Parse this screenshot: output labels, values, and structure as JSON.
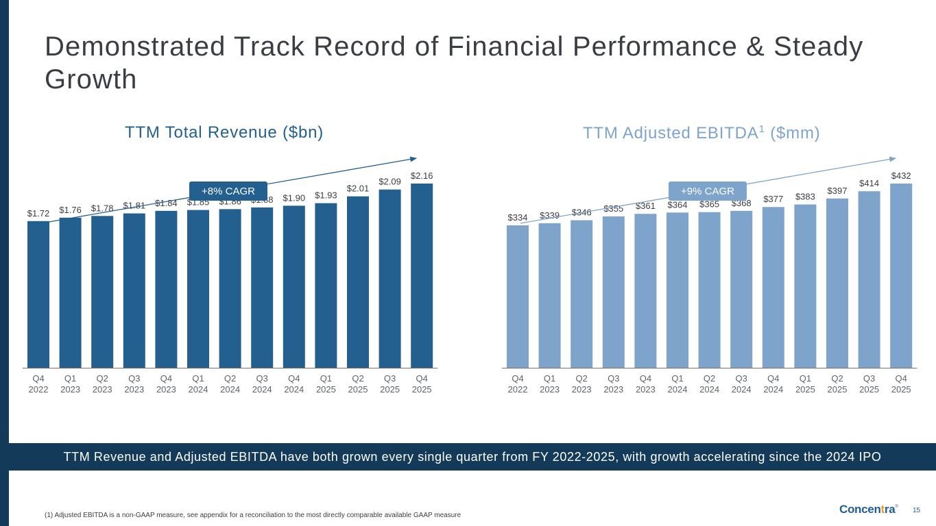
{
  "page": {
    "title": "Demonstrated Track Record of Financial Performance & Steady Growth",
    "banner": "TTM Revenue and Adjusted EBITDA have both grown every single quarter from FY 2022-2025, with growth accelerating since the 2024 IPO",
    "footnote": "(1) Adjusted EBITDA is a non-GAAP measure, see appendix for a reconciliation to the most directly comparable available GAAP measure",
    "logo": {
      "pre": "Concen",
      "plus": "t",
      "post": "ra",
      "reg": "®"
    },
    "page_number": "15"
  },
  "colors": {
    "stripe": "#143a5a",
    "revenue_bar": "#23608f",
    "ebitda_bar": "#7ea4cb",
    "label_text": "#3a3d42"
  },
  "chart_data": [
    {
      "type": "bar",
      "title": "TTM Total Revenue ($bn)",
      "title_main": "TTM Total Revenue ($bn)",
      "categories": [
        [
          "Q4",
          "2022"
        ],
        [
          "Q1",
          "2023"
        ],
        [
          "Q2",
          "2023"
        ],
        [
          "Q3",
          "2023"
        ],
        [
          "Q4",
          "2023"
        ],
        [
          "Q1",
          "2024"
        ],
        [
          "Q2",
          "2024"
        ],
        [
          "Q3",
          "2024"
        ],
        [
          "Q4",
          "2024"
        ],
        [
          "Q1",
          "2025"
        ],
        [
          "Q2",
          "2025"
        ],
        [
          "Q3",
          "2025"
        ],
        [
          "Q4",
          "2025"
        ]
      ],
      "values": [
        1.72,
        1.76,
        1.78,
        1.81,
        1.84,
        1.85,
        1.86,
        1.88,
        1.9,
        1.93,
        2.01,
        2.09,
        2.16
      ],
      "value_labels": [
        "$1.72",
        "$1.76",
        "$1.78",
        "$1.81",
        "$1.84",
        "$1.85",
        "$1.86",
        "$1.88",
        "$1.90",
        "$1.93",
        "$2.01",
        "$2.09",
        "$2.16"
      ],
      "ylim": [
        0,
        2.16
      ],
      "annotation": "+8% CAGR",
      "xlabel": "",
      "ylabel": "",
      "grid": false,
      "legend": "none"
    },
    {
      "type": "bar",
      "title": "TTM Adjusted EBITDA1 ($mm)",
      "title_main": "TTM Adjusted EBITDA",
      "title_sup": "1",
      "title_tail": " ($mm)",
      "categories": [
        [
          "Q4",
          "2022"
        ],
        [
          "Q1",
          "2023"
        ],
        [
          "Q2",
          "2023"
        ],
        [
          "Q3",
          "2023"
        ],
        [
          "Q4",
          "2023"
        ],
        [
          "Q1",
          "2024"
        ],
        [
          "Q2",
          "2024"
        ],
        [
          "Q3",
          "2024"
        ],
        [
          "Q4",
          "2024"
        ],
        [
          "Q1",
          "2025"
        ],
        [
          "Q2",
          "2025"
        ],
        [
          "Q3",
          "2025"
        ],
        [
          "Q4",
          "2025"
        ]
      ],
      "values": [
        334,
        339,
        346,
        355,
        361,
        364,
        365,
        368,
        377,
        383,
        397,
        414,
        432
      ],
      "value_labels": [
        "$334",
        "$339",
        "$346",
        "$355",
        "$361",
        "$364",
        "$365",
        "$368",
        "$377",
        "$383",
        "$397",
        "$414",
        "$432"
      ],
      "ylim": [
        0,
        432
      ],
      "annotation": "+9% CAGR",
      "xlabel": "",
      "ylabel": "",
      "grid": false,
      "legend": "none"
    }
  ]
}
